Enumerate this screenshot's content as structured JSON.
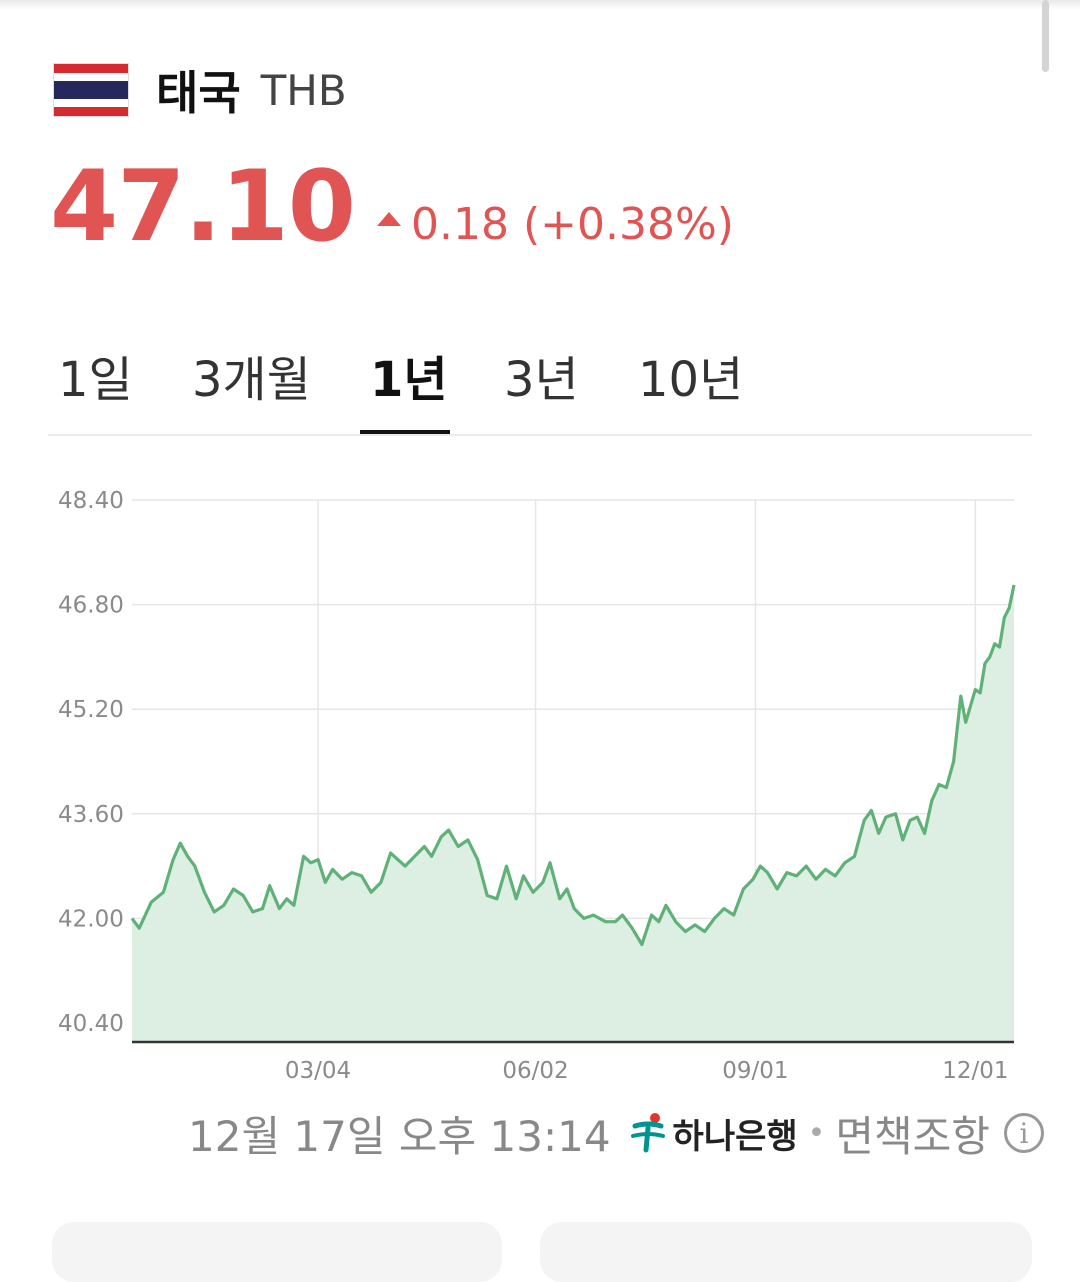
{
  "header": {
    "country": "태국",
    "currency_code": "THB",
    "flag_icon": "thailand-flag-icon"
  },
  "quote": {
    "rate": "47.10",
    "change": "0.18 (+0.38%)",
    "direction": "up",
    "color": "#e05554"
  },
  "tabs": [
    {
      "label": "1일",
      "active": false
    },
    {
      "label": "3개월",
      "active": false
    },
    {
      "label": "1년",
      "active": true
    },
    {
      "label": "3년",
      "active": false
    },
    {
      "label": "10년",
      "active": false
    }
  ],
  "footer": {
    "timestamp": "12월 17일 오후 13:14",
    "bank": "하나은행",
    "separator": "•",
    "disclaimer": "면책조항",
    "info_icon": "info-icon"
  },
  "chart_data": {
    "type": "area",
    "title": "",
    "xlabel": "",
    "ylabel": "",
    "line_color": "#5fb178",
    "fill_color": "#dcefe2",
    "grid": true,
    "ylim": [
      40.4,
      48.4
    ],
    "yticks": [
      "48.40",
      "46.80",
      "45.20",
      "43.60",
      "42.00",
      "40.40"
    ],
    "xticks": [
      "03/04",
      "06/02",
      "09/01",
      "12/01"
    ],
    "x_range": [
      "2024-12-17",
      "2025-12-17"
    ],
    "series": [
      {
        "points": [
          [
            "2024-12-17",
            42.0
          ],
          [
            "2024-12-20",
            41.85
          ],
          [
            "2024-12-25",
            42.25
          ],
          [
            "2024-12-30",
            42.4
          ],
          [
            "2025-01-03",
            42.9
          ],
          [
            "2025-01-06",
            43.15
          ],
          [
            "2025-01-09",
            42.95
          ],
          [
            "2025-01-12",
            42.8
          ],
          [
            "2025-01-16",
            42.4
          ],
          [
            "2025-01-20",
            42.1
          ],
          [
            "2025-01-24",
            42.2
          ],
          [
            "2025-01-28",
            42.45
          ],
          [
            "2025-02-01",
            42.35
          ],
          [
            "2025-02-05",
            42.1
          ],
          [
            "2025-02-09",
            42.15
          ],
          [
            "2025-02-12",
            42.5
          ],
          [
            "2025-02-16",
            42.15
          ],
          [
            "2025-02-19",
            42.3
          ],
          [
            "2025-02-22",
            42.2
          ],
          [
            "2025-02-26",
            42.95
          ],
          [
            "2025-03-01",
            42.85
          ],
          [
            "2025-03-04",
            42.9
          ],
          [
            "2025-03-07",
            42.55
          ],
          [
            "2025-03-10",
            42.75
          ],
          [
            "2025-03-14",
            42.6
          ],
          [
            "2025-03-18",
            42.7
          ],
          [
            "2025-03-22",
            42.65
          ],
          [
            "2025-03-26",
            42.4
          ],
          [
            "2025-03-30",
            42.55
          ],
          [
            "2025-04-03",
            43.0
          ],
          [
            "2025-04-06",
            42.9
          ],
          [
            "2025-04-09",
            42.8
          ],
          [
            "2025-04-13",
            42.95
          ],
          [
            "2025-04-17",
            43.1
          ],
          [
            "2025-04-20",
            42.95
          ],
          [
            "2025-04-24",
            43.25
          ],
          [
            "2025-04-27",
            43.35
          ],
          [
            "2025-05-01",
            43.1
          ],
          [
            "2025-05-05",
            43.2
          ],
          [
            "2025-05-09",
            42.9
          ],
          [
            "2025-05-13",
            42.35
          ],
          [
            "2025-05-17",
            42.3
          ],
          [
            "2025-05-21",
            42.8
          ],
          [
            "2025-05-25",
            42.3
          ],
          [
            "2025-05-28",
            42.65
          ],
          [
            "2025-06-01",
            42.4
          ],
          [
            "2025-06-05",
            42.55
          ],
          [
            "2025-06-08",
            42.85
          ],
          [
            "2025-06-12",
            42.3
          ],
          [
            "2025-06-15",
            42.45
          ],
          [
            "2025-06-18",
            42.15
          ],
          [
            "2025-06-22",
            42.0
          ],
          [
            "2025-06-26",
            42.05
          ],
          [
            "2025-07-01",
            41.95
          ],
          [
            "2025-07-05",
            41.95
          ],
          [
            "2025-07-08",
            42.05
          ],
          [
            "2025-07-12",
            41.85
          ],
          [
            "2025-07-16",
            41.6
          ],
          [
            "2025-07-20",
            42.05
          ],
          [
            "2025-07-23",
            41.95
          ],
          [
            "2025-07-26",
            42.2
          ],
          [
            "2025-07-30",
            41.95
          ],
          [
            "2025-08-03",
            41.8
          ],
          [
            "2025-08-07",
            41.9
          ],
          [
            "2025-08-11",
            41.8
          ],
          [
            "2025-08-15",
            42.0
          ],
          [
            "2025-08-19",
            42.15
          ],
          [
            "2025-08-23",
            42.05
          ],
          [
            "2025-08-27",
            42.45
          ],
          [
            "2025-08-31",
            42.6
          ],
          [
            "2025-09-03",
            42.8
          ],
          [
            "2025-09-06",
            42.7
          ],
          [
            "2025-09-10",
            42.45
          ],
          [
            "2025-09-14",
            42.7
          ],
          [
            "2025-09-18",
            42.65
          ],
          [
            "2025-09-22",
            42.8
          ],
          [
            "2025-09-26",
            42.6
          ],
          [
            "2025-09-30",
            42.75
          ],
          [
            "2025-10-04",
            42.65
          ],
          [
            "2025-10-08",
            42.85
          ],
          [
            "2025-10-12",
            42.95
          ],
          [
            "2025-10-16",
            43.5
          ],
          [
            "2025-10-19",
            43.65
          ],
          [
            "2025-10-22",
            43.3
          ],
          [
            "2025-10-25",
            43.55
          ],
          [
            "2025-10-29",
            43.6
          ],
          [
            "2025-11-01",
            43.2
          ],
          [
            "2025-11-04",
            43.5
          ],
          [
            "2025-11-07",
            43.55
          ],
          [
            "2025-11-10",
            43.3
          ],
          [
            "2025-11-13",
            43.8
          ],
          [
            "2025-11-16",
            44.05
          ],
          [
            "2025-11-19",
            44.0
          ],
          [
            "2025-11-22",
            44.4
          ],
          [
            "2025-11-25",
            45.4
          ],
          [
            "2025-11-27",
            45.0
          ],
          [
            "2025-11-29",
            45.25
          ],
          [
            "2025-12-01",
            45.5
          ],
          [
            "2025-12-03",
            45.45
          ],
          [
            "2025-12-05",
            45.9
          ],
          [
            "2025-12-07",
            46.0
          ],
          [
            "2025-12-09",
            46.2
          ],
          [
            "2025-12-11",
            46.15
          ],
          [
            "2025-12-13",
            46.6
          ],
          [
            "2025-12-15",
            46.75
          ],
          [
            "2025-12-17",
            47.1
          ]
        ]
      }
    ]
  }
}
